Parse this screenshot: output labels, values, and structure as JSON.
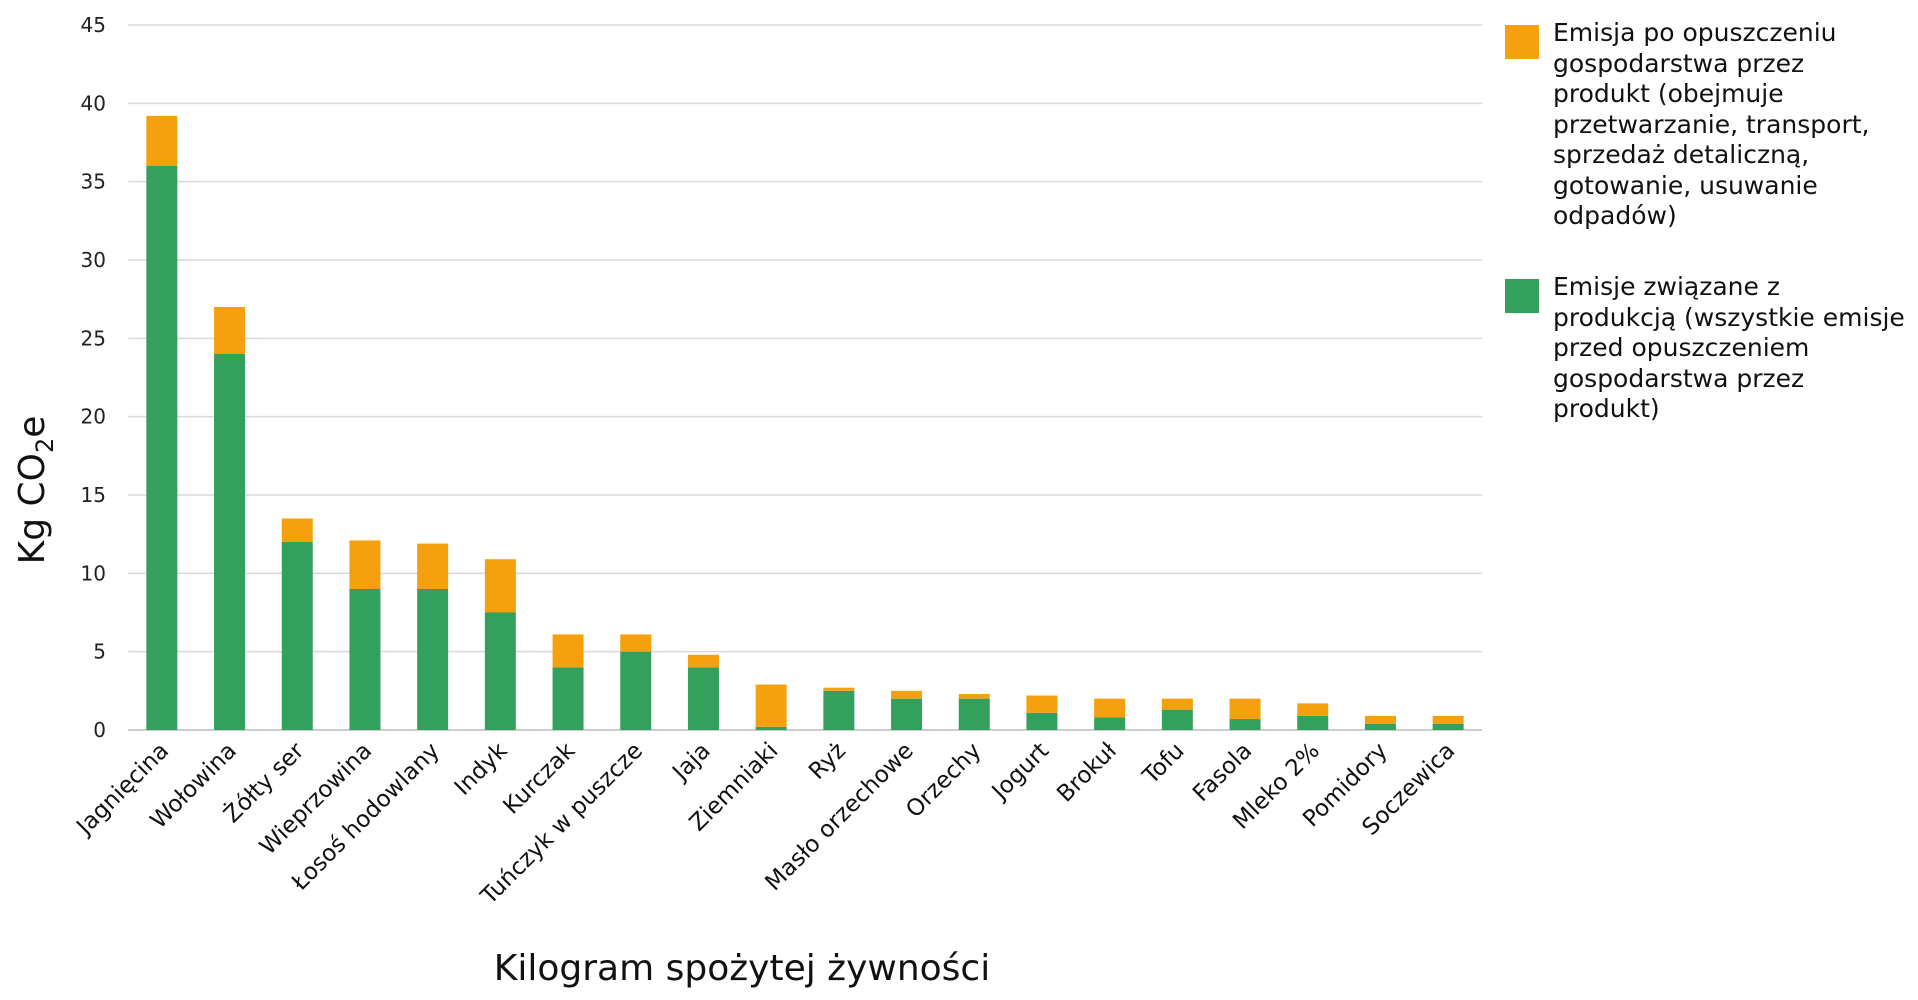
{
  "chart_data": {
    "type": "bar",
    "stacked": true,
    "categories": [
      "Jagnięcina",
      "Wołowina",
      "Żółty ser",
      "Wieprzowina",
      "Łosoś hodowlany",
      "Indyk",
      "Kurczak",
      "Tuńczyk w puszcze",
      "Jaja",
      "Ziemniaki",
      "Ryż",
      "Masło orzechowe",
      "Orzechy",
      "Jogurt",
      "Brokuł",
      "Tofu",
      "Fasola",
      "Mleko 2%",
      "Pomidory",
      "Soczewica"
    ],
    "series": [
      {
        "name": "Emisje związane z produkcją (wszystkie emisje przed opuszczeniem gospodarstwa przez produkt)",
        "color": "#34a05e",
        "values": [
          36,
          24,
          12,
          9,
          9,
          7.5,
          4,
          5,
          4,
          0.2,
          2.5,
          2,
          2,
          1.1,
          0.8,
          1.3,
          0.7,
          0.9,
          0.4,
          0.4
        ]
      },
      {
        "name": "Emisja po opuszczeniu gospodarstwa przez produkt (obejmuje przetwarzanie, transport, sprzedaż detaliczną, gotowanie, usuwanie odpadów)",
        "color": "#f5a00f",
        "values": [
          3.2,
          3,
          1.5,
          3.1,
          2.9,
          3.4,
          2.1,
          1.1,
          0.8,
          2.7,
          0.2,
          0.5,
          0.3,
          1.1,
          1.2,
          0.7,
          1.3,
          0.8,
          0.5,
          0.5
        ]
      }
    ],
    "legend_order": [
      1,
      0
    ],
    "ylim": [
      0,
      45
    ],
    "yticks": [
      0,
      5,
      10,
      15,
      20,
      25,
      30,
      35,
      40,
      45
    ],
    "ylabel_main": "Kg CO",
    "ylabel_sub": "2",
    "ylabel_end": "e",
    "xlabel": "Kilogram spożytej żywności",
    "grid": true,
    "legend_position": "right"
  }
}
